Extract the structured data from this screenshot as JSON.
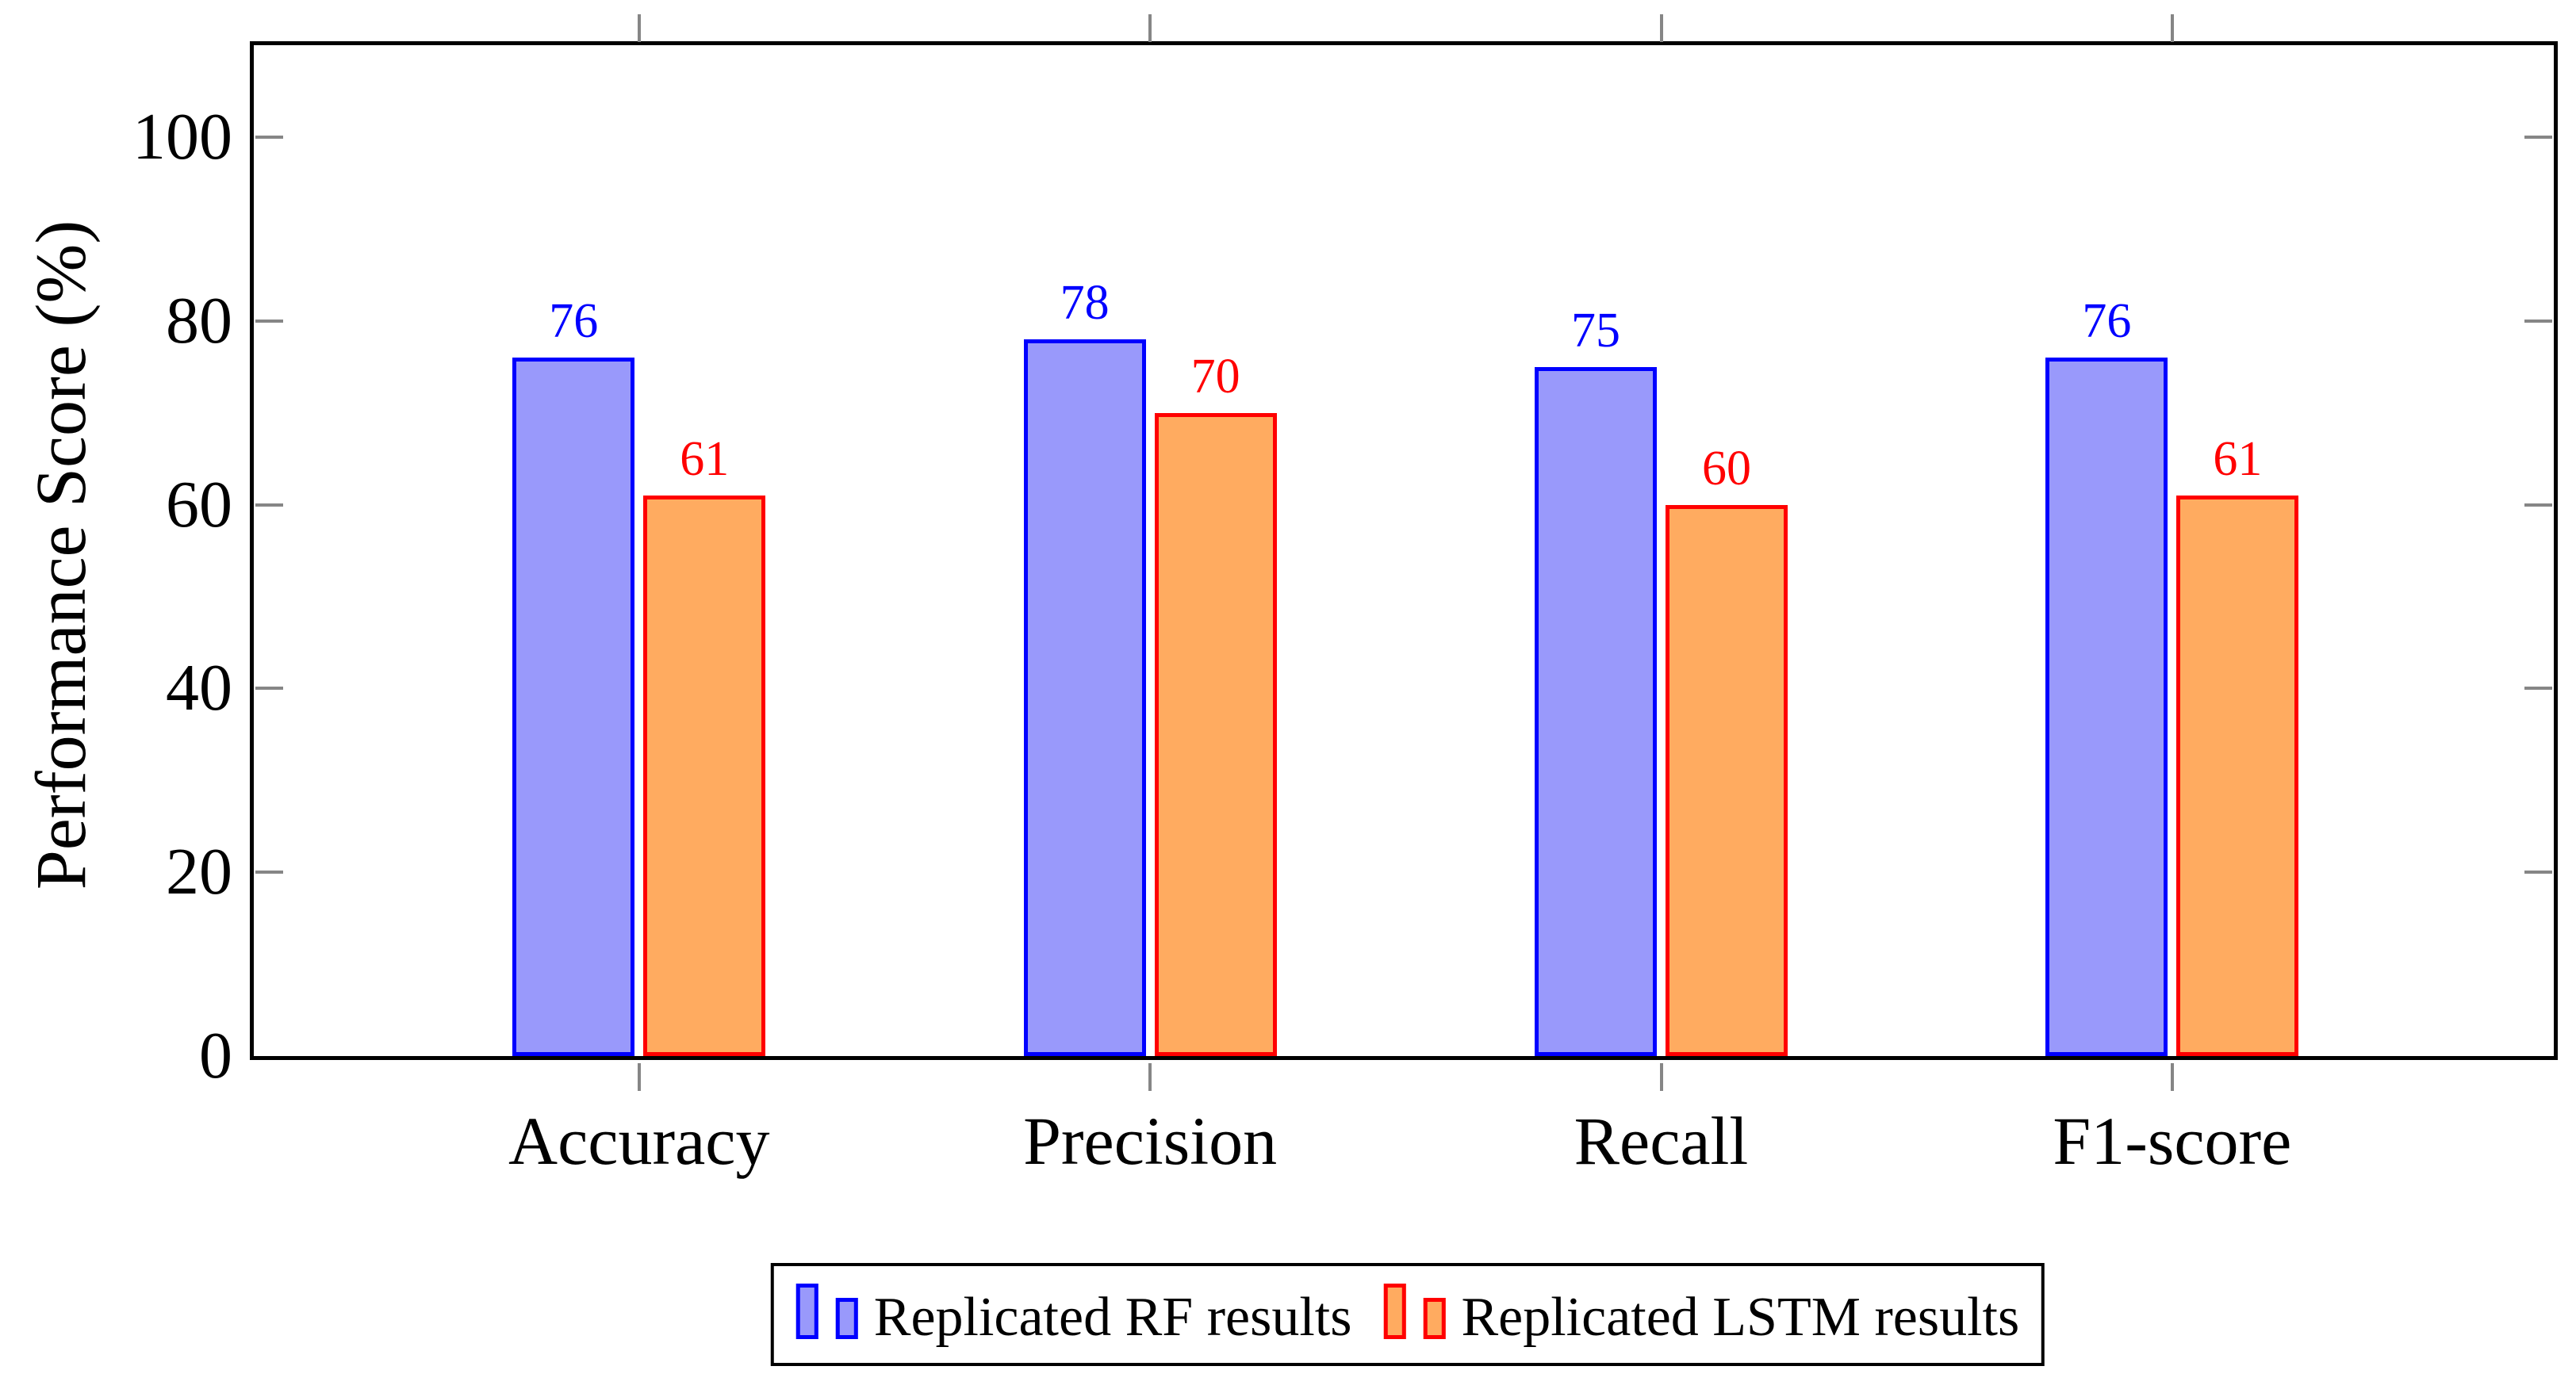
{
  "chart_data": {
    "type": "bar",
    "title": "",
    "categories": [
      "Accuracy",
      "Precision",
      "Recall",
      "F1-score"
    ],
    "series": [
      {
        "name": "Replicated RF results",
        "values": [
          76,
          78,
          75,
          76
        ],
        "fill": "#9999fb",
        "stroke": "#0000ff",
        "label_color": "#0000ff"
      },
      {
        "name": "Replicated LSTM results",
        "values": [
          61,
          70,
          60,
          61
        ],
        "fill": "#ffab60",
        "stroke": "#ff0000",
        "label_color": "#ff0000"
      }
    ],
    "xlabel": "",
    "ylabel": "Performance Score (%)",
    "ylim": [
      0,
      110
    ],
    "yticks": [
      0,
      20,
      40,
      60,
      80,
      100
    ],
    "grid": false,
    "bar_value_labels": true,
    "legend_position": "below-center",
    "axis_color": "#000000",
    "tick_color": "#868686",
    "text_color": "#000000",
    "background": "#ffffff"
  }
}
